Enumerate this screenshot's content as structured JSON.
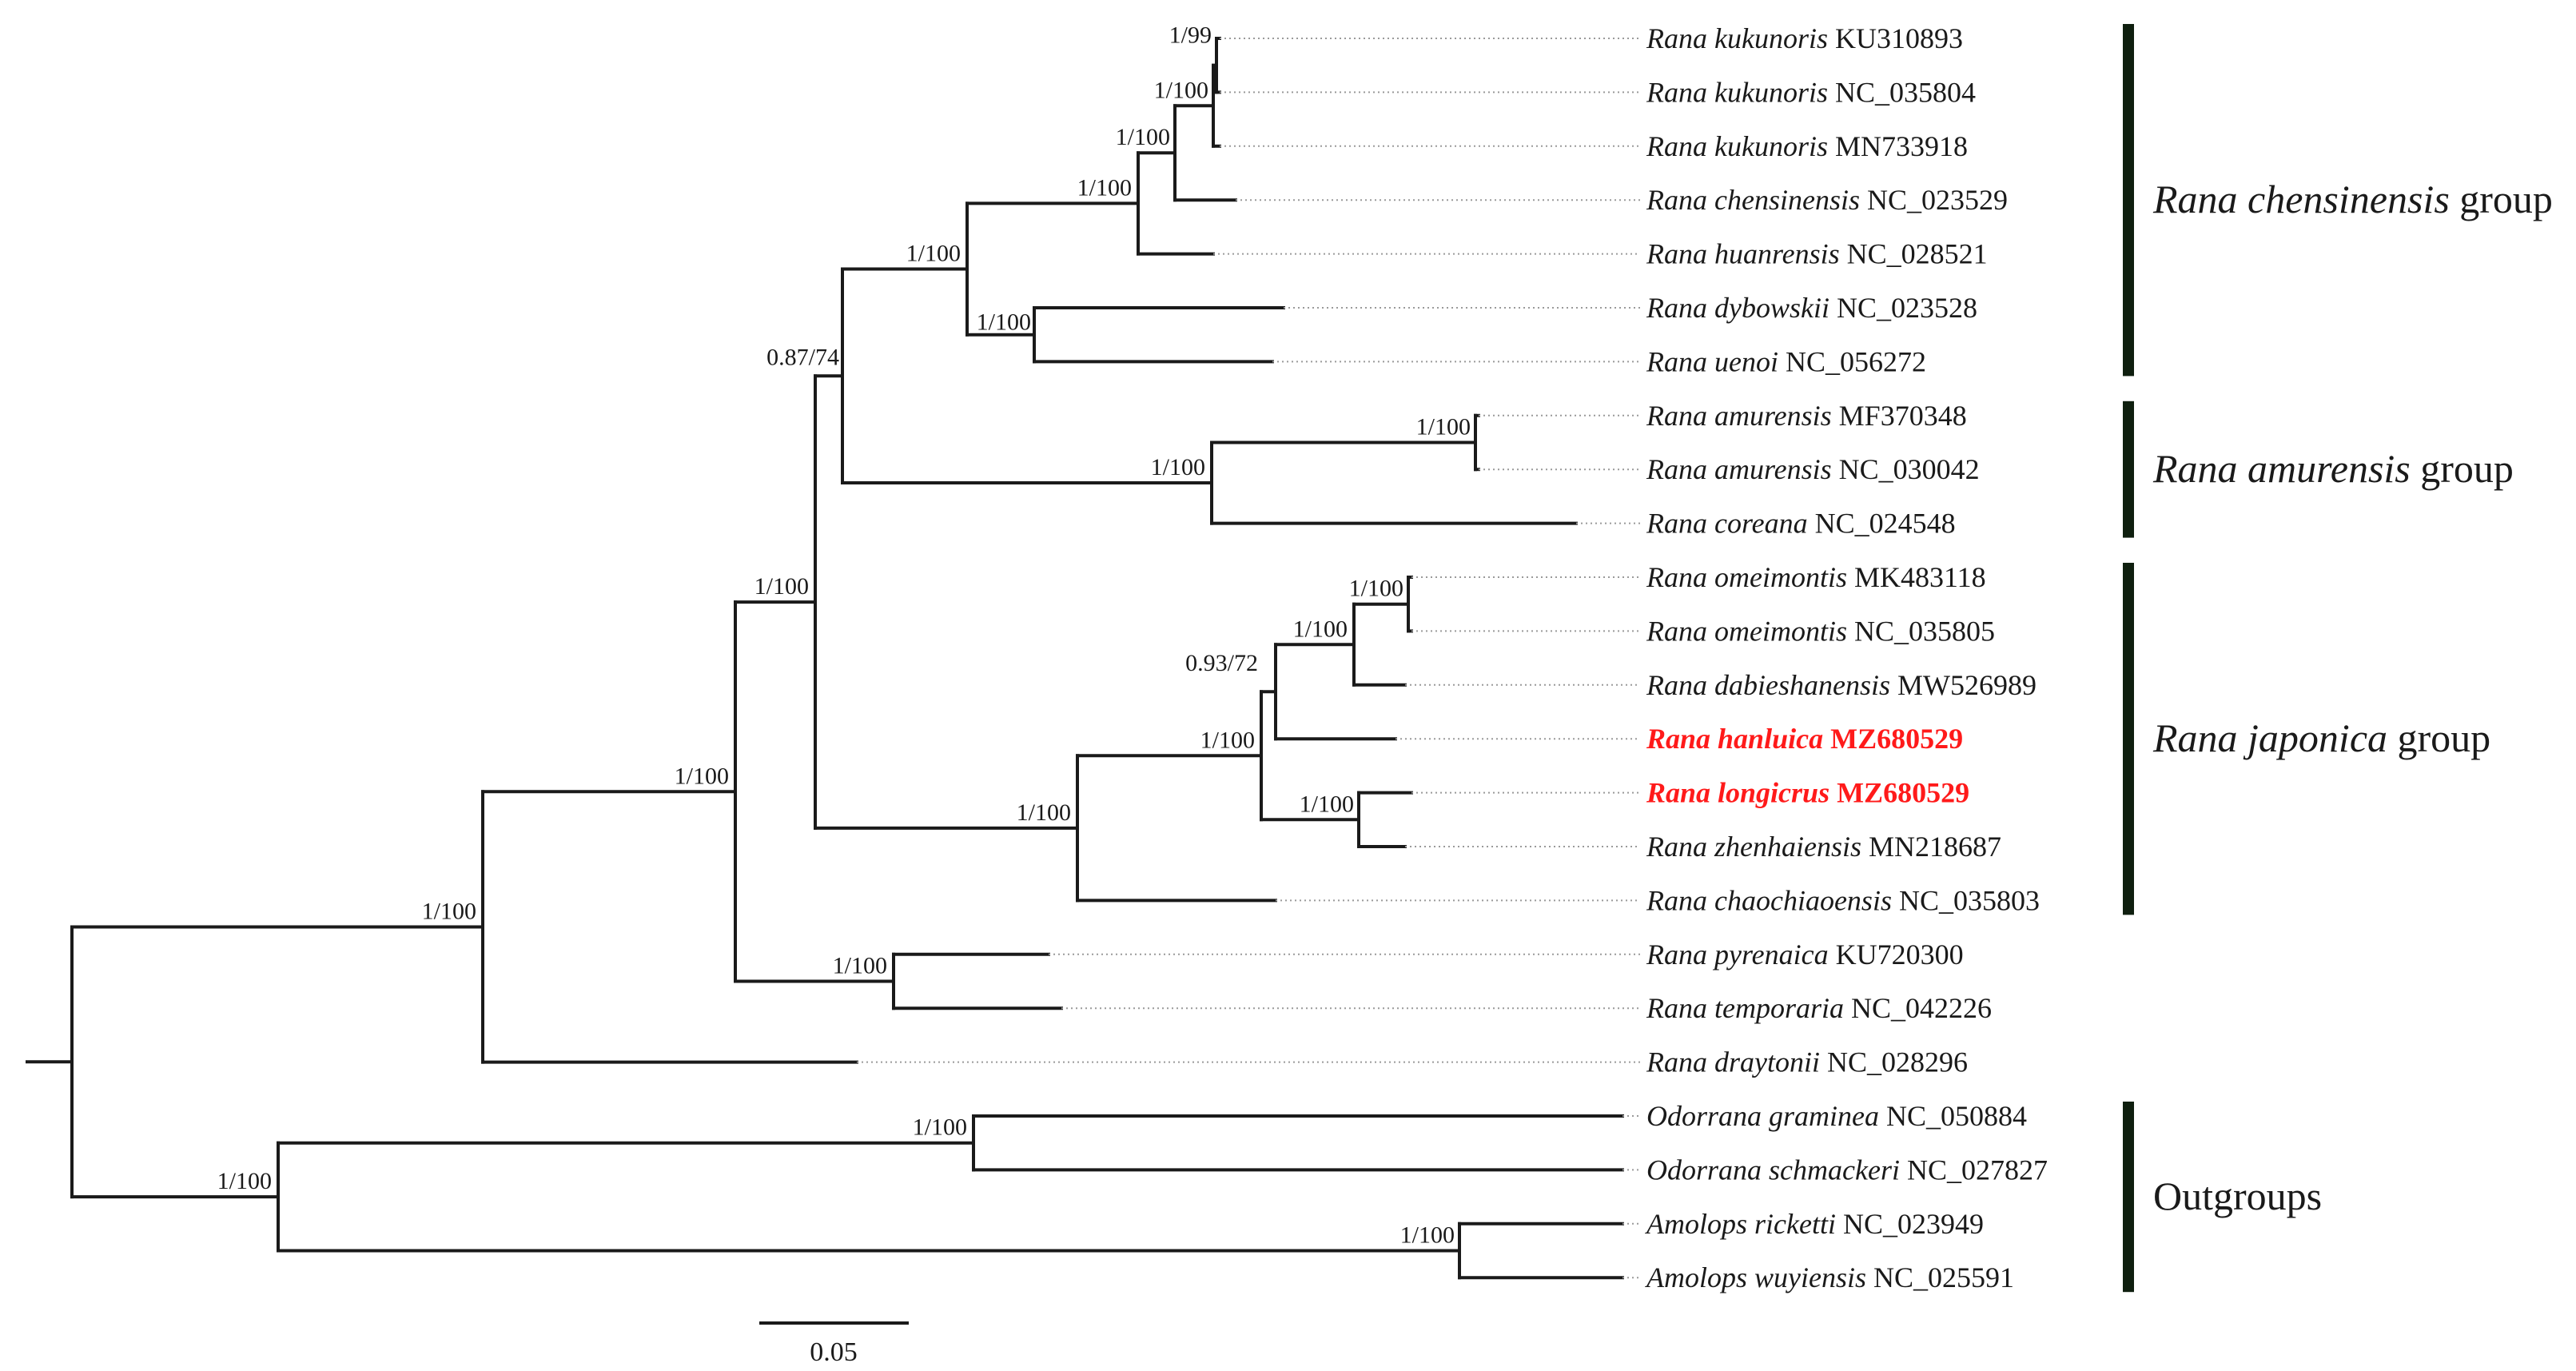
{
  "figure": "phylogenetic-tree",
  "colors": {
    "branch": "#1a1a1a",
    "highlight": "#ff1a1a",
    "group_bar": "#0f1f0f"
  },
  "tips": [
    {
      "species": "Rana kukunoris",
      "accession": "KU310893"
    },
    {
      "species": "Rana kukunoris",
      "accession": "NC_035804"
    },
    {
      "species": "Rana kukunoris",
      "accession": "MN733918"
    },
    {
      "species": "Rana chensinensis",
      "accession": "NC_023529"
    },
    {
      "species": "Rana huanrensis",
      "accession": "NC_028521"
    },
    {
      "species": "Rana dybowskii",
      "accession": "NC_023528"
    },
    {
      "species": "Rana uenoi",
      "accession": "NC_056272"
    },
    {
      "species": "Rana amurensis",
      "accession": "MF370348"
    },
    {
      "species": "Rana amurensis",
      "accession": "NC_030042"
    },
    {
      "species": "Rana coreana",
      "accession": "NC_024548"
    },
    {
      "species": "Rana omeimontis",
      "accession": "MK483118"
    },
    {
      "species": "Rana omeimontis",
      "accession": "NC_035805"
    },
    {
      "species": "Rana dabieshanensis",
      "accession": "MW526989"
    },
    {
      "species": "Rana hanluica",
      "accession": "MZ680529",
      "highlight": true
    },
    {
      "species": "Rana longicrus",
      "accession": "MZ680529",
      "highlight": true
    },
    {
      "species": "Rana zhenhaiensis",
      "accession": "MN218687"
    },
    {
      "species": "Rana chaochiaoensis",
      "accession": "NC_035803"
    },
    {
      "species": "Rana pyrenaica",
      "accession": "KU720300"
    },
    {
      "species": "Rana temporaria",
      "accession": "NC_042226"
    },
    {
      "species": "Rana draytonii",
      "accession": "NC_028296"
    },
    {
      "species": "Odorrana graminea",
      "accession": "NC_050884"
    },
    {
      "species": "Odorrana schmackeri",
      "accession": "NC_027827"
    },
    {
      "species": "Amolops ricketti",
      "accession": "NC_023949"
    },
    {
      "species": "Amolops wuyiensis",
      "accession": "NC_025591"
    }
  ],
  "support_values": {
    "kuk_top": "1/99",
    "kuk_all": "1/100",
    "kuk_chen": "1/100",
    "kuk_chen_huan": "1/100",
    "dyb_uenoi": "1/100",
    "chensinensis_group": "1/100",
    "chens_amur": "0.87/74",
    "amurensis_pair": "1/100",
    "amurensis_group": "1/100",
    "omei_pair": "1/100",
    "omei_dabie": "1/100",
    "omei_hanluica": "0.93/72",
    "long_zhen": "1/100",
    "core_japonica": "1/100",
    "japonica_group": "1/100",
    "three_groups": "1/100",
    "pyr_temp": "1/100",
    "rana_core": "1/100",
    "rana_all": "1/100",
    "odorrana": "1/100",
    "amolops": "1/100",
    "outgroups": "1/100"
  },
  "groups": [
    {
      "genus": "Rana",
      "epithet": "chensinensis",
      "suffix": "group"
    },
    {
      "genus": "Rana",
      "epithet": "amurensis",
      "suffix": "group"
    },
    {
      "genus": "Rana",
      "epithet": "japonica",
      "suffix": "group"
    },
    {
      "label": "Outgroups"
    }
  ],
  "scale_bar": {
    "value": 0.05,
    "label": "0.05"
  }
}
